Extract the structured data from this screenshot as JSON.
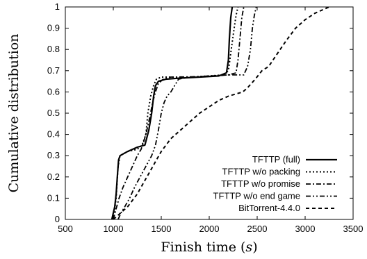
{
  "chart_data": {
    "type": "line",
    "title": "",
    "xlabel": "Finish time (s)",
    "ylabel": "Cumulative distribution",
    "xlim": [
      500,
      3500
    ],
    "ylim": [
      0,
      1
    ],
    "xticks": [
      "500",
      "1000",
      "1500",
      "2000",
      "2500",
      "3000",
      "3500"
    ],
    "yticks": [
      "0",
      "0.1",
      "0.2",
      "0.3",
      "0.4",
      "0.5",
      "0.6",
      "0.7",
      "0.8",
      "0.9",
      "1"
    ],
    "grid": false,
    "legend_position": "bottom-right",
    "series": [
      {
        "name": "TFTTP (full)",
        "style": "solid",
        "color": "#000000",
        "points": [
          [
            985,
            0
          ],
          [
            1000,
            0.03
          ],
          [
            1015,
            0.06
          ],
          [
            1030,
            0.12
          ],
          [
            1045,
            0.22
          ],
          [
            1055,
            0.28
          ],
          [
            1070,
            0.3
          ],
          [
            1150,
            0.32
          ],
          [
            1250,
            0.34
          ],
          [
            1330,
            0.35
          ],
          [
            1370,
            0.42
          ],
          [
            1400,
            0.5
          ],
          [
            1420,
            0.58
          ],
          [
            1440,
            0.63
          ],
          [
            1470,
            0.65
          ],
          [
            1550,
            0.66
          ],
          [
            1700,
            0.665
          ],
          [
            1900,
            0.67
          ],
          [
            2100,
            0.675
          ],
          [
            2180,
            0.69
          ],
          [
            2200,
            0.75
          ],
          [
            2210,
            0.85
          ],
          [
            2225,
            0.95
          ],
          [
            2240,
            1.0
          ]
        ]
      },
      {
        "name": "TFTTP w/o packing",
        "style": "dotted",
        "color": "#000000",
        "points": [
          [
            990,
            0
          ],
          [
            1010,
            0.03
          ],
          [
            1030,
            0.1
          ],
          [
            1050,
            0.25
          ],
          [
            1070,
            0.3
          ],
          [
            1150,
            0.32
          ],
          [
            1250,
            0.33
          ],
          [
            1300,
            0.35
          ],
          [
            1340,
            0.4
          ],
          [
            1360,
            0.5
          ],
          [
            1390,
            0.58
          ],
          [
            1420,
            0.63
          ],
          [
            1450,
            0.66
          ],
          [
            1500,
            0.67
          ],
          [
            1600,
            0.67
          ],
          [
            1800,
            0.67
          ],
          [
            2000,
            0.675
          ],
          [
            2150,
            0.68
          ],
          [
            2200,
            0.7
          ],
          [
            2230,
            0.8
          ],
          [
            2260,
            0.9
          ],
          [
            2280,
            0.96
          ],
          [
            2300,
            1.0
          ]
        ]
      },
      {
        "name": "TFTTP w/o promise",
        "style": "dashdot",
        "color": "#000000",
        "points": [
          [
            1000,
            0
          ],
          [
            1030,
            0.05
          ],
          [
            1060,
            0.1
          ],
          [
            1100,
            0.15
          ],
          [
            1150,
            0.2
          ],
          [
            1200,
            0.25
          ],
          [
            1250,
            0.3
          ],
          [
            1290,
            0.33
          ],
          [
            1320,
            0.37
          ],
          [
            1350,
            0.42
          ],
          [
            1380,
            0.48
          ],
          [
            1410,
            0.55
          ],
          [
            1440,
            0.6
          ],
          [
            1470,
            0.64
          ],
          [
            1520,
            0.66
          ],
          [
            1600,
            0.67
          ],
          [
            1900,
            0.672
          ],
          [
            2200,
            0.68
          ],
          [
            2280,
            0.69
          ],
          [
            2300,
            0.75
          ],
          [
            2320,
            0.85
          ],
          [
            2340,
            0.95
          ],
          [
            2360,
            1.0
          ]
        ]
      },
      {
        "name": "TFTTP w/o end game",
        "style": "dashdotdot",
        "color": "#000000",
        "points": [
          [
            1050,
            0
          ],
          [
            1080,
            0.03
          ],
          [
            1120,
            0.06
          ],
          [
            1170,
            0.1
          ],
          [
            1220,
            0.15
          ],
          [
            1280,
            0.2
          ],
          [
            1340,
            0.25
          ],
          [
            1400,
            0.3
          ],
          [
            1440,
            0.35
          ],
          [
            1470,
            0.42
          ],
          [
            1500,
            0.5
          ],
          [
            1530,
            0.55
          ],
          [
            1560,
            0.58
          ],
          [
            1600,
            0.6
          ],
          [
            1640,
            0.63
          ],
          [
            1680,
            0.66
          ],
          [
            1800,
            0.67
          ],
          [
            2000,
            0.675
          ],
          [
            2200,
            0.68
          ],
          [
            2360,
            0.68
          ],
          [
            2400,
            0.72
          ],
          [
            2430,
            0.8
          ],
          [
            2450,
            0.9
          ],
          [
            2470,
            0.96
          ],
          [
            2490,
            1.0
          ]
        ]
      },
      {
        "name": "BitTorrent-4.4.0",
        "style": "dashed",
        "color": "#000000",
        "points": [
          [
            1000,
            0
          ],
          [
            1050,
            0.02
          ],
          [
            1100,
            0.04
          ],
          [
            1150,
            0.06
          ],
          [
            1200,
            0.09
          ],
          [
            1250,
            0.12
          ],
          [
            1300,
            0.16
          ],
          [
            1350,
            0.2
          ],
          [
            1400,
            0.24
          ],
          [
            1450,
            0.28
          ],
          [
            1500,
            0.32
          ],
          [
            1550,
            0.35
          ],
          [
            1600,
            0.38
          ],
          [
            1700,
            0.42
          ],
          [
            1800,
            0.46
          ],
          [
            1900,
            0.5
          ],
          [
            2000,
            0.53
          ],
          [
            2100,
            0.56
          ],
          [
            2200,
            0.58
          ],
          [
            2350,
            0.6
          ],
          [
            2400,
            0.62
          ],
          [
            2480,
            0.66
          ],
          [
            2550,
            0.7
          ],
          [
            2620,
            0.72
          ],
          [
            2680,
            0.76
          ],
          [
            2740,
            0.8
          ],
          [
            2800,
            0.84
          ],
          [
            2900,
            0.9
          ],
          [
            3000,
            0.94
          ],
          [
            3100,
            0.97
          ],
          [
            3250,
            1.0
          ]
        ]
      }
    ]
  }
}
